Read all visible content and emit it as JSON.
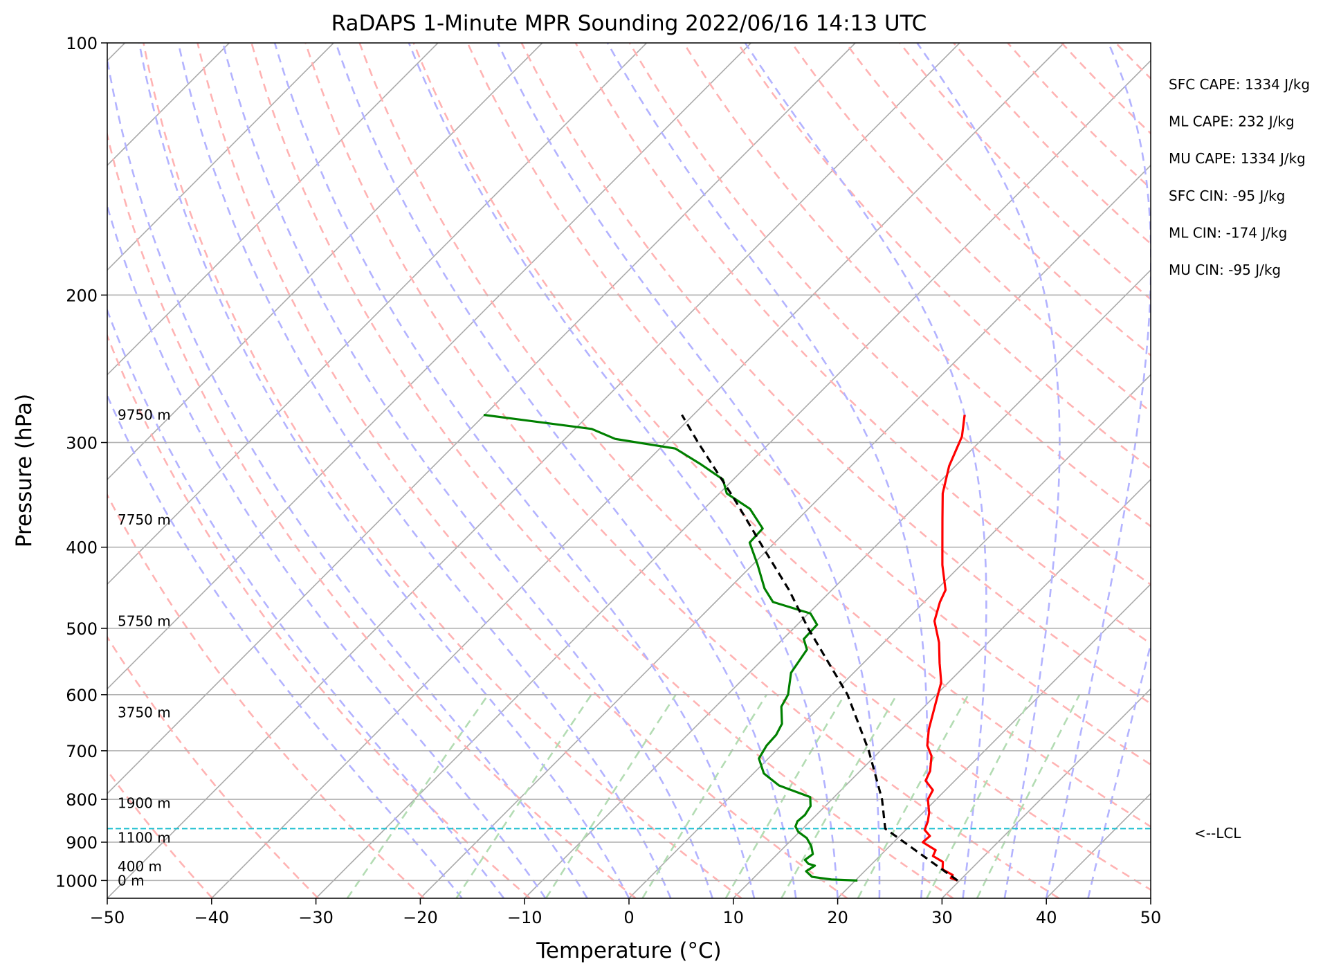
{
  "chart_data": {
    "type": "skew-t",
    "title": "RaDAPS 1-Minute MPR Sounding 2022/06/16 14:13 UTC",
    "xlabel": "Temperature (°C)",
    "ylabel": "Pressure (hPa)",
    "xlim": [
      -50,
      50
    ],
    "ylim": [
      1050,
      100
    ],
    "y_scale": "log",
    "skew_degrees_per_decade": 80,
    "x_ticks": [
      -50,
      -40,
      -30,
      -20,
      -10,
      0,
      10,
      20,
      30,
      40,
      50
    ],
    "y_ticks": [
      100,
      200,
      300,
      400,
      500,
      600,
      700,
      800,
      900,
      1000
    ],
    "grid": true,
    "colors": {
      "temperature": "#ff0000",
      "dewpoint": "#008000",
      "parcel": "#000000",
      "lcl": "#17becf",
      "isotherm": "#aaaaaa",
      "dry_adiabat": "#ffb3b3",
      "moist_adiabat": "#b3b3ff",
      "mixing_ratio": "#b3dcb3"
    },
    "stats": [
      "SFC CAPE: 1334 J/kg",
      "ML CAPE: 232 J/kg",
      "MU CAPE: 1334 J/kg",
      "SFC CIN: -95 J/kg",
      "ML CIN: -174 J/kg",
      "MU CIN: -95 J/kg"
    ],
    "lcl": {
      "label": "<--LCL",
      "pressure": 867
    },
    "height_labels": [
      {
        "text": "9750 m",
        "p": 278
      },
      {
        "text": "7750 m",
        "p": 371
      },
      {
        "text": "5750 m",
        "p": 490
      },
      {
        "text": "3750 m",
        "p": 630
      },
      {
        "text": "1900 m",
        "p": 808
      },
      {
        "text": "1100 m",
        "p": 889
      },
      {
        "text": "400 m",
        "p": 962
      },
      {
        "text": "0 m",
        "p": 1000
      }
    ],
    "series": [
      {
        "name": "temperature",
        "points": [
          {
            "p": 1000,
            "t": 29.8
          },
          {
            "p": 993,
            "t": 28.9
          },
          {
            "p": 985,
            "t": 28.8
          },
          {
            "p": 970,
            "t": 27.3
          },
          {
            "p": 950,
            "t": 26.6
          },
          {
            "p": 935,
            "t": 25.1
          },
          {
            "p": 920,
            "t": 24.8
          },
          {
            "p": 900,
            "t": 22.8
          },
          {
            "p": 885,
            "t": 22.9
          },
          {
            "p": 870,
            "t": 21.8
          },
          {
            "p": 850,
            "t": 21.3
          },
          {
            "p": 830,
            "t": 20.6
          },
          {
            "p": 800,
            "t": 19.2
          },
          {
            "p": 780,
            "t": 18.8
          },
          {
            "p": 760,
            "t": 17.2
          },
          {
            "p": 740,
            "t": 16.7
          },
          {
            "p": 710,
            "t": 15.4
          },
          {
            "p": 690,
            "t": 14.0
          },
          {
            "p": 660,
            "t": 12.6
          },
          {
            "p": 620,
            "t": 11.0
          },
          {
            "p": 580,
            "t": 9.3
          },
          {
            "p": 550,
            "t": 7.3
          },
          {
            "p": 520,
            "t": 5.3
          },
          {
            "p": 490,
            "t": 2.8
          },
          {
            "p": 465,
            "t": 1.5
          },
          {
            "p": 450,
            "t": 0.9
          },
          {
            "p": 420,
            "t": -1.8
          },
          {
            "p": 400,
            "t": -3.5
          },
          {
            "p": 370,
            "t": -6.2
          },
          {
            "p": 345,
            "t": -8.6
          },
          {
            "p": 320,
            "t": -10.6
          },
          {
            "p": 295,
            "t": -12.2
          },
          {
            "p": 278,
            "t": -14.0
          }
        ]
      },
      {
        "name": "dewpoint",
        "points": [
          {
            "p": 1000,
            "t": 20.2
          },
          {
            "p": 997,
            "t": 17.6
          },
          {
            "p": 990,
            "t": 15.5
          },
          {
            "p": 975,
            "t": 14.4
          },
          {
            "p": 960,
            "t": 14.7
          },
          {
            "p": 955,
            "t": 13.9
          },
          {
            "p": 945,
            "t": 13.2
          },
          {
            "p": 930,
            "t": 13.4
          },
          {
            "p": 910,
            "t": 12.5
          },
          {
            "p": 890,
            "t": 11.3
          },
          {
            "p": 875,
            "t": 9.9
          },
          {
            "p": 862,
            "t": 9.1
          },
          {
            "p": 850,
            "t": 8.8
          },
          {
            "p": 835,
            "t": 8.9
          },
          {
            "p": 815,
            "t": 8.6
          },
          {
            "p": 795,
            "t": 7.7
          },
          {
            "p": 770,
            "t": 3.6
          },
          {
            "p": 745,
            "t": 1.0
          },
          {
            "p": 715,
            "t": -0.9
          },
          {
            "p": 690,
            "t": -1.4
          },
          {
            "p": 670,
            "t": -1.5
          },
          {
            "p": 650,
            "t": -2.0
          },
          {
            "p": 620,
            "t": -3.7
          },
          {
            "p": 600,
            "t": -4.2
          },
          {
            "p": 565,
            "t": -6.0
          },
          {
            "p": 530,
            "t": -6.7
          },
          {
            "p": 515,
            "t": -8.0
          },
          {
            "p": 495,
            "t": -8.1
          },
          {
            "p": 480,
            "t": -9.8
          },
          {
            "p": 465,
            "t": -14.5
          },
          {
            "p": 448,
            "t": -16.6
          },
          {
            "p": 420,
            "t": -19.5
          },
          {
            "p": 395,
            "t": -22.4
          },
          {
            "p": 380,
            "t": -22.5
          },
          {
            "p": 360,
            "t": -25.6
          },
          {
            "p": 345,
            "t": -29.3
          },
          {
            "p": 332,
            "t": -31.0
          },
          {
            "p": 318,
            "t": -34.7
          },
          {
            "p": 305,
            "t": -38.5
          },
          {
            "p": 297,
            "t": -45.2
          },
          {
            "p": 289,
            "t": -48.4
          },
          {
            "p": 278,
            "t": -60.1
          }
        ]
      },
      {
        "name": "parcel",
        "points": [
          {
            "p": 1000,
            "t": 29.8
          },
          {
            "p": 867,
            "t": 17.9
          },
          {
            "p": 800,
            "t": 14.8
          },
          {
            "p": 700,
            "t": 8.9
          },
          {
            "p": 600,
            "t": 1.5
          },
          {
            "p": 500,
            "t": -8.6
          },
          {
            "p": 450,
            "t": -14.1
          },
          {
            "p": 400,
            "t": -20.7
          },
          {
            "p": 350,
            "t": -28.1
          },
          {
            "p": 300,
            "t": -36.9
          },
          {
            "p": 278,
            "t": -41.1
          }
        ]
      }
    ]
  }
}
